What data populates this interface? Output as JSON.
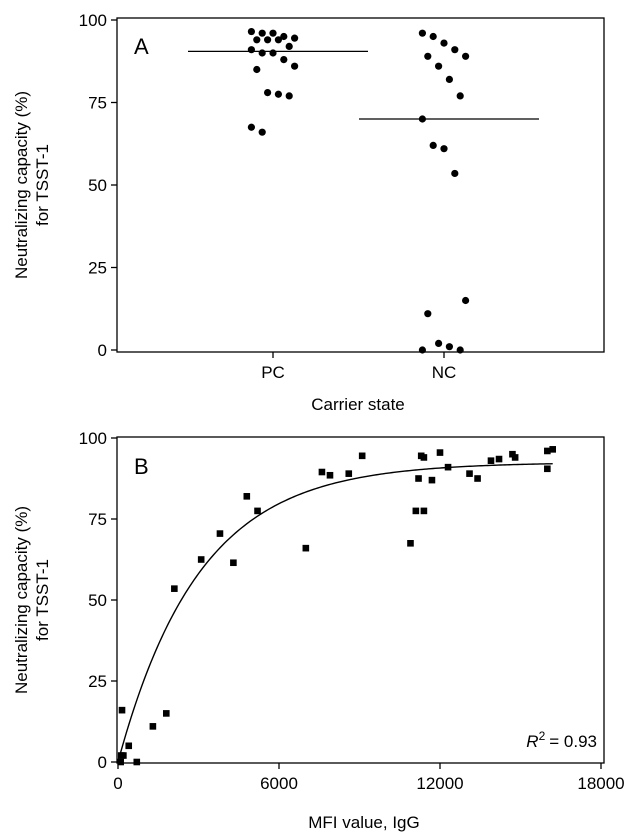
{
  "chart_data": [
    {
      "type": "scatter",
      "panel": "A",
      "xlabel": "Carrier state",
      "ylabel_lines": [
        "Neutralizing capacity (%)",
        "for TSST-1"
      ],
      "categories": [
        "PC",
        "NC"
      ],
      "ylim": [
        0,
        100
      ],
      "yticks": [
        0,
        25,
        50,
        75,
        100
      ],
      "grid": false,
      "series": [
        {
          "values": [
            [
              96.5,
              96,
              96,
              95,
              94.5,
              94,
              94,
              94,
              92,
              91,
              90,
              90,
              88,
              86,
              85,
              78,
              77.5,
              77,
              67.5,
              66
            ],
            [
              96,
              95,
              93,
              91,
              89,
              89,
              86,
              82,
              77,
              70,
              62,
              61,
              53.5,
              15,
              11,
              2,
              1,
              0,
              0
            ]
          ]
        }
      ],
      "medians": [
        90.5,
        70
      ]
    },
    {
      "type": "scatter",
      "panel": "B",
      "xlabel": "MFI value, IgG",
      "ylabel_lines": [
        "Neutralizing capacity (%)",
        "for TSST-1"
      ],
      "xlim": [
        0,
        18000
      ],
      "ylim": [
        0,
        100
      ],
      "xticks": [
        0,
        6000,
        12000,
        18000
      ],
      "yticks": [
        0,
        25,
        50,
        75,
        100
      ],
      "grid": false,
      "annotation": {
        "r_label": "R",
        "r_exp": "2",
        "r_value": "= 0.93"
      },
      "points": [
        [
          100,
          0
        ],
        [
          120,
          2
        ],
        [
          150,
          16
        ],
        [
          200,
          2
        ],
        [
          400,
          5
        ],
        [
          700,
          0
        ],
        [
          1300,
          11
        ],
        [
          1800,
          15
        ],
        [
          2100,
          53.5
        ],
        [
          3100,
          62.5
        ],
        [
          3800,
          70.5
        ],
        [
          4300,
          61.5
        ],
        [
          4800,
          82
        ],
        [
          5200,
          77.5
        ],
        [
          7000,
          66
        ],
        [
          7600,
          89.5
        ],
        [
          7900,
          88.5
        ],
        [
          8600,
          89
        ],
        [
          9100,
          94.5
        ],
        [
          10900,
          67.5
        ],
        [
          11100,
          77.5
        ],
        [
          11200,
          87.5
        ],
        [
          11300,
          94.5
        ],
        [
          11400,
          94
        ],
        [
          11400,
          77.5
        ],
        [
          11700,
          87
        ],
        [
          12000,
          95.5
        ],
        [
          12300,
          91
        ],
        [
          13100,
          89
        ],
        [
          13400,
          87.5
        ],
        [
          13900,
          93
        ],
        [
          14200,
          93.5
        ],
        [
          14700,
          95
        ],
        [
          14800,
          94
        ],
        [
          16000,
          96
        ],
        [
          16000,
          90.5
        ],
        [
          16200,
          96.5
        ]
      ],
      "curve": {
        "type": "exponential",
        "plateau": 92.5,
        "rate": 0.00033,
        "x_end": 16200
      }
    }
  ]
}
